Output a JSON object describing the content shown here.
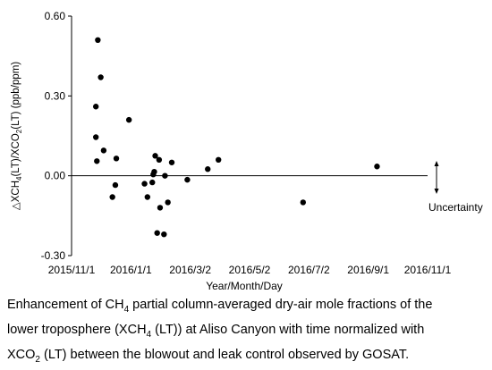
{
  "chart_data": {
    "type": "scatter",
    "title": "",
    "xlabel": "Year/Month/Day",
    "ylabel_parts": [
      "△XCH",
      "4",
      "(LT)/XCO",
      "2",
      "(LT) (ppb/ppm)"
    ],
    "x_tick_labels": [
      "2015/11/1",
      "2016/1/1",
      "2016/3/2",
      "2016/5/2",
      "2016/7/2",
      "2016/9/1",
      "2016/11/1"
    ],
    "x_tick_dates": [
      "2015-11-01",
      "2016-01-01",
      "2016-03-02",
      "2016-05-02",
      "2016-07-02",
      "2016-09-01",
      "2016-11-01"
    ],
    "y_tick_labels": [
      "0.60",
      "0.30",
      "0.00",
      "-0.30"
    ],
    "y_tick_values": [
      0.6,
      0.3,
      0.0,
      -0.3
    ],
    "xlim": [
      "2015-11-01",
      "2016-11-01"
    ],
    "ylim": [
      -0.3,
      0.6
    ],
    "grid": false,
    "zero_line": true,
    "uncertainty_label": "Uncertainty",
    "uncertainty_range": [
      -0.065,
      0.055
    ],
    "points": [
      {
        "x": "2015-11-26",
        "y": 0.26
      },
      {
        "x": "2015-11-26",
        "y": 0.145
      },
      {
        "x": "2015-11-27",
        "y": 0.055
      },
      {
        "x": "2015-11-28",
        "y": 0.51
      },
      {
        "x": "2015-12-01",
        "y": 0.37
      },
      {
        "x": "2015-12-04",
        "y": 0.095
      },
      {
        "x": "2015-12-13",
        "y": -0.08
      },
      {
        "x": "2015-12-16",
        "y": -0.035
      },
      {
        "x": "2015-12-17",
        "y": 0.065
      },
      {
        "x": "2015-12-30",
        "y": 0.21
      },
      {
        "x": "2016-01-15",
        "y": -0.03
      },
      {
        "x": "2016-01-18",
        "y": -0.08
      },
      {
        "x": "2016-01-23",
        "y": -0.025
      },
      {
        "x": "2016-01-24",
        "y": 0.005
      },
      {
        "x": "2016-01-25",
        "y": 0.015
      },
      {
        "x": "2016-01-26",
        "y": 0.075
      },
      {
        "x": "2016-01-28",
        "y": -0.215
      },
      {
        "x": "2016-01-30",
        "y": 0.06
      },
      {
        "x": "2016-01-31",
        "y": -0.12
      },
      {
        "x": "2016-02-04",
        "y": -0.22
      },
      {
        "x": "2016-02-05",
        "y": 0.0
      },
      {
        "x": "2016-02-08",
        "y": -0.1
      },
      {
        "x": "2016-02-12",
        "y": 0.05
      },
      {
        "x": "2016-02-28",
        "y": -0.015
      },
      {
        "x": "2016-03-20",
        "y": 0.025
      },
      {
        "x": "2016-03-31",
        "y": 0.06
      },
      {
        "x": "2016-06-26",
        "y": -0.1
      },
      {
        "x": "2016-09-10",
        "y": 0.035
      }
    ]
  },
  "caption": {
    "line1_a": "Enhancement of CH",
    "line1_sub": "4",
    "line1_b": " partial column-averaged dry-air mole fractions of the",
    "line2_a": "lower troposphere (XCH",
    "line2_sub": "4",
    "line2_b": " (LT)) at Aliso Canyon with time normalized with",
    "line3_a": "XCO",
    "line3_sub": "2",
    "line3_b": " (LT) between the blowout and leak control observed by GOSAT."
  }
}
